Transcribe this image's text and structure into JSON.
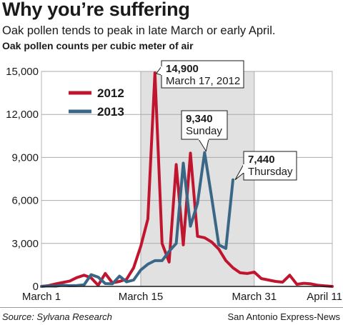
{
  "header": {
    "title": "Why you’re suffering",
    "subtitle": "Oak pollen tends to peak in late March or early April.",
    "unit_label": "Oak pollen counts per cubic meter of air"
  },
  "footer": {
    "source": "Source: Sylvana Research",
    "credit": "San Antonio Express-News"
  },
  "chart_data": {
    "type": "line",
    "ylabel": "Oak pollen counts per cubic meter of air",
    "x_unit": "day",
    "x_start_label": "March 1",
    "xlim": [
      1,
      42
    ],
    "ylim": [
      0,
      15000
    ],
    "y_ticks": [
      0,
      3000,
      6000,
      9000,
      12000,
      15000
    ],
    "y_tick_labels": [
      "0",
      "3,000",
      "6,000",
      "9,000",
      "12,000",
      "15,000"
    ],
    "x_ticks": [
      {
        "day": 1,
        "label": "March 1"
      },
      {
        "day": 15,
        "label": "March 15"
      },
      {
        "day": 31,
        "label": "March 31"
      },
      {
        "day": 42,
        "label": "April 11"
      }
    ],
    "shaded_range": [
      15,
      31
    ],
    "grid": true,
    "legend": "upper-left",
    "series": [
      {
        "name": "2012",
        "color": "#c0152f",
        "points": [
          [
            1,
            0
          ],
          [
            2,
            60
          ],
          [
            3,
            180
          ],
          [
            4,
            280
          ],
          [
            5,
            380
          ],
          [
            6,
            620
          ],
          [
            7,
            780
          ],
          [
            8,
            600
          ],
          [
            9,
            80
          ],
          [
            10,
            900
          ],
          [
            11,
            250
          ],
          [
            12,
            350
          ],
          [
            13,
            500
          ],
          [
            14,
            1300
          ],
          [
            15,
            2800
          ],
          [
            16,
            4700
          ],
          [
            17,
            14900
          ],
          [
            18,
            3000
          ],
          [
            19,
            1700
          ],
          [
            20,
            8500
          ],
          [
            21,
            2900
          ],
          [
            22,
            9300
          ],
          [
            23,
            3500
          ],
          [
            24,
            3400
          ],
          [
            25,
            3100
          ],
          [
            26,
            2600
          ],
          [
            27,
            1800
          ],
          [
            28,
            1300
          ],
          [
            29,
            950
          ],
          [
            30,
            900
          ],
          [
            31,
            1000
          ],
          [
            32,
            550
          ],
          [
            33,
            450
          ],
          [
            34,
            350
          ],
          [
            35,
            300
          ],
          [
            36,
            780
          ],
          [
            37,
            150
          ],
          [
            38,
            220
          ],
          [
            39,
            180
          ],
          [
            40,
            80
          ],
          [
            41,
            40
          ],
          [
            42,
            0
          ]
        ]
      },
      {
        "name": "2013",
        "color": "#3a6786",
        "points": [
          [
            1,
            0
          ],
          [
            2,
            30
          ],
          [
            3,
            20
          ],
          [
            4,
            90
          ],
          [
            5,
            50
          ],
          [
            6,
            60
          ],
          [
            7,
            110
          ],
          [
            8,
            820
          ],
          [
            9,
            650
          ],
          [
            10,
            200
          ],
          [
            11,
            180
          ],
          [
            12,
            720
          ],
          [
            13,
            320
          ],
          [
            14,
            450
          ],
          [
            15,
            1150
          ],
          [
            16,
            1550
          ],
          [
            17,
            1800
          ],
          [
            18,
            1800
          ],
          [
            19,
            2450
          ],
          [
            20,
            3000
          ],
          [
            21,
            8600
          ],
          [
            22,
            4200
          ],
          [
            23,
            5800
          ],
          [
            24,
            9340
          ],
          [
            25,
            6200
          ],
          [
            26,
            2900
          ],
          [
            27,
            2650
          ],
          [
            28,
            7440
          ]
        ]
      }
    ],
    "annotations": [
      {
        "series": "2012",
        "day": 17,
        "value_label": "14,900",
        "label": "March 17, 2012"
      },
      {
        "series": "2013",
        "day": 24,
        "value_label": "9,340",
        "label": "Sunday"
      },
      {
        "series": "2013",
        "day": 28,
        "value_label": "7,440",
        "label": "Thursday"
      }
    ]
  }
}
